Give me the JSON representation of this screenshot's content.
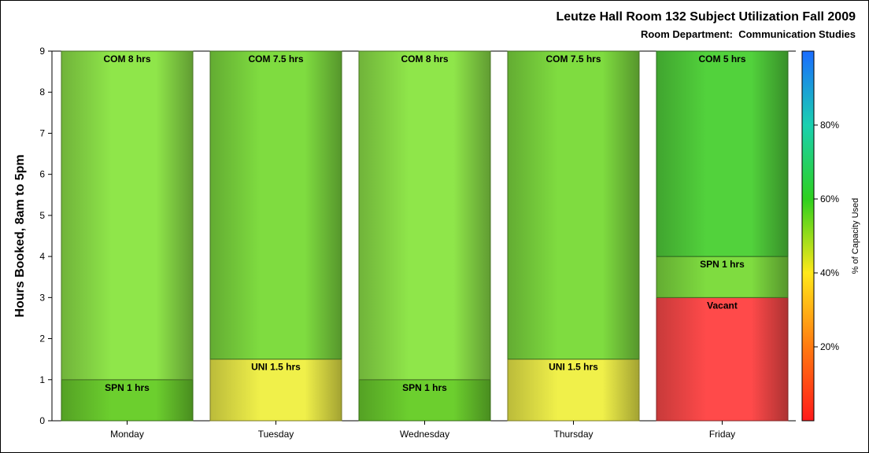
{
  "chart_data": {
    "type": "bar",
    "stacked": true,
    "title": "Leutze Hall Room 132 Subject Utilization Fall 2009",
    "subtitle": "Room Department:  Communication Studies",
    "ylabel": "Hours Booked, 8am to 5pm",
    "xlabel": "",
    "ylim": [
      0,
      9
    ],
    "yticks": [
      "0",
      "1",
      "2",
      "3",
      "4",
      "5",
      "6",
      "7",
      "8",
      "9"
    ],
    "categories": [
      "Monday",
      "Tuesday",
      "Wednesday",
      "Thursday",
      "Friday"
    ],
    "bars": [
      {
        "day": "Monday",
        "segments": [
          {
            "label": "SPN 1 hrs",
            "value": 1,
            "color": "#6ccf2e"
          },
          {
            "label": "COM 8 hrs",
            "value": 8,
            "color": "#8fe64a"
          }
        ]
      },
      {
        "day": "Tuesday",
        "segments": [
          {
            "label": "UNI 1.5 hrs",
            "value": 1.5,
            "color": "#f0f04a"
          },
          {
            "label": "COM 7.5 hrs",
            "value": 7.5,
            "color": "#7fdc40"
          }
        ]
      },
      {
        "day": "Wednesday",
        "segments": [
          {
            "label": "SPN 1 hrs",
            "value": 1,
            "color": "#6ccf2e"
          },
          {
            "label": "COM 8 hrs",
            "value": 8,
            "color": "#8fe64a"
          }
        ]
      },
      {
        "day": "Thursday",
        "segments": [
          {
            "label": "UNI 1.5 hrs",
            "value": 1.5,
            "color": "#f0f04a"
          },
          {
            "label": "COM 7.5 hrs",
            "value": 7.5,
            "color": "#7fdc40"
          }
        ]
      },
      {
        "day": "Friday",
        "segments": [
          {
            "label": "Vacant",
            "value": 3,
            "color": "#ff4a4a"
          },
          {
            "label": "SPN 1 hrs",
            "value": 1,
            "color": "#7fdc40"
          },
          {
            "label": "COM 5 hrs",
            "value": 5,
            "color": "#52d23c"
          }
        ]
      }
    ],
    "colorbar": {
      "label": "% of Capacity Used",
      "ticks": [
        {
          "label": "20%",
          "value": 20
        },
        {
          "label": "40%",
          "value": 40
        },
        {
          "label": "60%",
          "value": 60
        },
        {
          "label": "80%",
          "value": 80
        }
      ],
      "range": [
        0,
        100
      ],
      "stops": [
        "#ff1a1a",
        "#ff7a10",
        "#ffe81a",
        "#2ed01e",
        "#1ad0b0",
        "#1a6cff"
      ]
    }
  }
}
